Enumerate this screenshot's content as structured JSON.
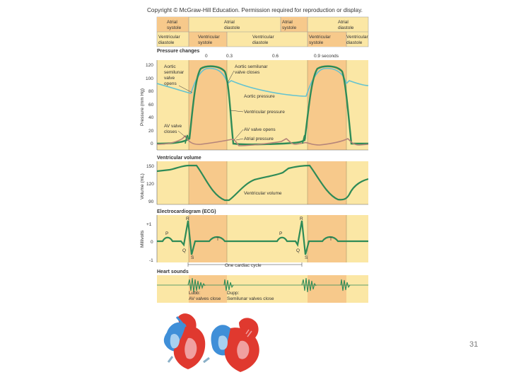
{
  "copyright": "Copyright © McGraw-Hill Education. Permission required for reproduction or display.",
  "slide_number": "31",
  "phases_top": [
    {
      "line1": "Atrial",
      "line2": "systole"
    },
    {
      "line1": "Atrial",
      "line2": "diastole"
    },
    {
      "line1": "Atrial",
      "line2": "systole"
    },
    {
      "line1": "Atrial",
      "line2": "diastole"
    }
  ],
  "phases_bottom": [
    {
      "line1": "Ventricular",
      "line2": "diastole"
    },
    {
      "line1": "Ventricular",
      "line2": "systole"
    },
    {
      "line1": "Ventricular",
      "line2": "diastole"
    },
    {
      "line1": "Ventricular",
      "line2": "systole"
    },
    {
      "line1": "Ventricular",
      "line2": "diastole"
    }
  ],
  "pressure_panel": {
    "heading": "Pressure changes",
    "time_labels": [
      "0",
      "0.3",
      "0.6",
      "0.9 seconds"
    ],
    "ylabel": "Pressure (mm Hg)",
    "yticks": [
      "120",
      "100",
      "80",
      "60",
      "40",
      "20",
      "0"
    ],
    "annotations": {
      "aortic_sl_opens_1": "Aortic",
      "aortic_sl_opens_2": "semilunar",
      "aortic_sl_opens_3": "valve",
      "aortic_sl_opens_4": "opens",
      "aortic_sl_closes_1": "Aortic semilunar",
      "aortic_sl_closes_2": "valve closes",
      "aortic_pressure": "Aortic pressure",
      "ventricular_pressure": "Ventricular pressure",
      "av_opens": "AV valve opens",
      "atrial_pressure": "Atrial pressure",
      "av_closes_1": "AV valve",
      "av_closes_2": "closes"
    }
  },
  "volume_panel": {
    "heading": "Ventricular volume",
    "ylabel": "Volume (mL)",
    "yticks": [
      "150",
      "120",
      "90"
    ],
    "curve_label": "Ventricular volume"
  },
  "ecg_panel": {
    "heading": "Electrocardiogram (ECG)",
    "ylabel": "Millivolts",
    "yticks": [
      "+1",
      "0",
      "-1"
    ],
    "wave_labels": {
      "p": "P",
      "q": "Q",
      "r": "R",
      "s": "S",
      "t": "T"
    },
    "cycle_label": "One cardiac cycle"
  },
  "sounds_panel": {
    "heading": "Heart sounds",
    "lubb_1": "Lubb:",
    "lubb_2": "AV valves close",
    "dupp_1": "Dupp:",
    "dupp_2": "Semilunar valves close"
  },
  "colors": {
    "panel_fill": "#fbe7a5",
    "systole_fill": "#f7c98b",
    "ventricular_curve": "#2e8b57",
    "aortic_curve": "#64c3d0",
    "atrial_curve": "#b5857a",
    "heart_red": "#e0392f",
    "heart_blue": "#3f8fd8"
  }
}
